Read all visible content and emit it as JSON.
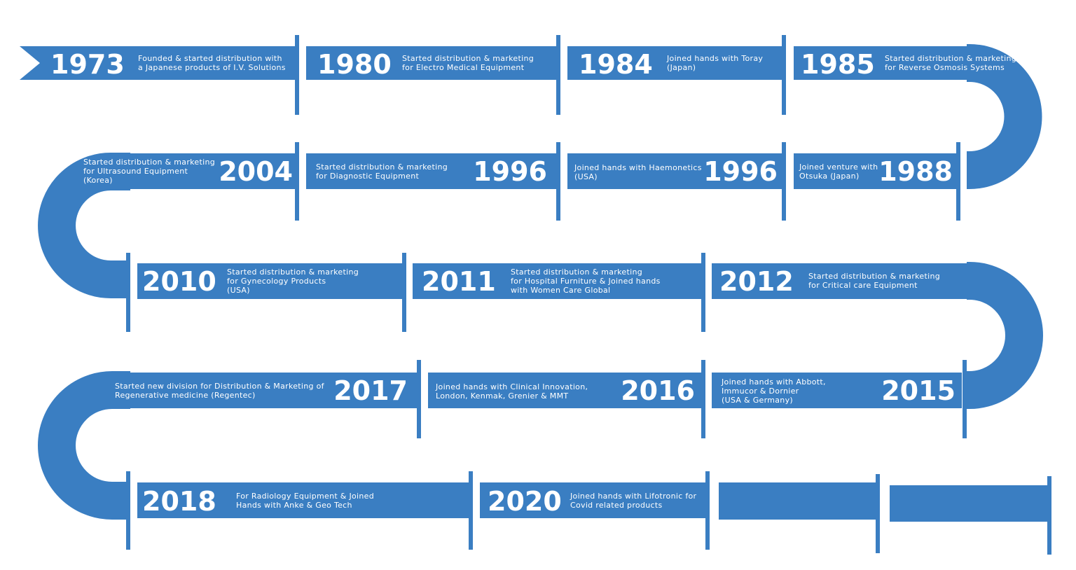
{
  "colors": {
    "band": "#3a7ec2",
    "text": "#ffffff",
    "background": "#ffffff"
  },
  "milestones": [
    {
      "year": "1973",
      "lines": [
        "Founded & started distribution with",
        "a Japanese products of I.V. Solutions"
      ]
    },
    {
      "year": "1980",
      "lines": [
        "Started distribution & marketing",
        "for Electro Medical Equipment"
      ]
    },
    {
      "year": "1984",
      "lines": [
        "Joined hands with Toray",
        "(Japan)"
      ]
    },
    {
      "year": "1985",
      "lines": [
        "Started distribution & marketing",
        "for Reverse Osmosis Systems"
      ]
    },
    {
      "year": "1988",
      "lines": [
        "Joined venture with",
        "Otsuka (Japan)"
      ]
    },
    {
      "year": "1996",
      "lines": [
        "Joined hands with Haemonetics",
        "(USA)"
      ]
    },
    {
      "year": "1996",
      "lines": [
        "Started distribution & marketing",
        "for Diagnostic Equipment"
      ]
    },
    {
      "year": "2004",
      "lines": [
        "Started distribution & marketing",
        "for Ultrasound Equipment",
        "(Korea)"
      ]
    },
    {
      "year": "2010",
      "lines": [
        "Started distribution & marketing",
        "for Gynecology Products",
        "(USA)"
      ]
    },
    {
      "year": "2011",
      "lines": [
        "Started distribution & marketing",
        "for Hospital Furniture & Joined hands",
        "with Women Care Global"
      ]
    },
    {
      "year": "2012",
      "lines": [
        "Started distribution & marketing",
        "for Critical care Equipment"
      ]
    },
    {
      "year": "2015",
      "lines": [
        "Joined hands with Abbott,",
        "Immucor & Dornier",
        "(USA & Germany)"
      ]
    },
    {
      "year": "2016",
      "lines": [
        "Joined hands with Clinical Innovation,",
        "London, Kenmak, Grenier & MMT"
      ]
    },
    {
      "year": "2017",
      "lines": [
        "Started new division for Distribution & Marketing of",
        "Regenerative medicine (Regentec)"
      ]
    },
    {
      "year": "2018",
      "lines": [
        "For Radiology Equipment & Joined",
        "Hands with Anke & Geo Tech"
      ]
    },
    {
      "year": "2020",
      "lines": [
        "Joined hands with Lifotronic for",
        "Covid related products"
      ]
    }
  ]
}
